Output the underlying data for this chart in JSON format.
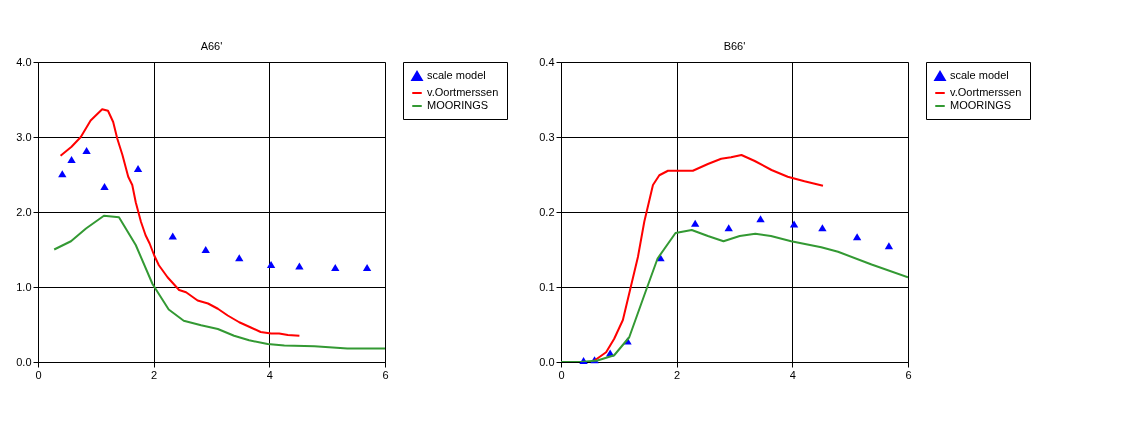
{
  "chart_data": [
    {
      "type": "line",
      "title": "A66'",
      "xlim": [
        0,
        6
      ],
      "xticks": [
        0,
        2,
        4,
        6
      ],
      "ylim": [
        0,
        4
      ],
      "yticks": [
        {
          "value": 0,
          "label": "0.0"
        },
        {
          "value": 1,
          "label": "1.0"
        },
        {
          "value": 2,
          "label": "2.0"
        },
        {
          "value": 3,
          "label": "3.0"
        },
        {
          "value": 4,
          "label": "4.0"
        }
      ],
      "grid": true,
      "legend": "right",
      "series": [
        {
          "name": "scale model",
          "type": "scatter",
          "marker": "triangle",
          "color": "#0000ff",
          "x": [
            0.42,
            0.58,
            0.84,
            1.15,
            1.73,
            2.33,
            2.9,
            3.48,
            4.03,
            4.52,
            5.14,
            5.69
          ],
          "values": [
            2.51,
            2.7,
            2.82,
            2.34,
            2.58,
            1.68,
            1.5,
            1.39,
            1.3,
            1.28,
            1.26,
            1.26
          ]
        },
        {
          "name": "v.Oortmerssen",
          "marker": "none",
          "color": "#ff0000",
          "x": [
            0.39,
            0.58,
            0.74,
            0.91,
            1.11,
            1.21,
            1.3,
            1.37,
            1.46,
            1.56,
            1.63,
            1.69,
            1.78,
            1.86,
            1.93,
            2.01,
            2.09,
            2.24,
            2.44,
            2.56,
            2.76,
            2.94,
            3.11,
            3.28,
            3.48,
            3.68,
            3.85,
            4.03,
            4.17,
            4.32,
            4.52
          ],
          "values": [
            2.75,
            2.87,
            3.0,
            3.22,
            3.37,
            3.35,
            3.2,
            2.98,
            2.76,
            2.47,
            2.36,
            2.13,
            1.87,
            1.69,
            1.58,
            1.42,
            1.29,
            1.13,
            0.96,
            0.93,
            0.82,
            0.78,
            0.71,
            0.62,
            0.53,
            0.46,
            0.4,
            0.38,
            0.38,
            0.36,
            0.35
          ]
        },
        {
          "name": "MOORINGS",
          "marker": "none",
          "color": "#339933",
          "x": [
            0.28,
            0.57,
            0.83,
            1.14,
            1.4,
            1.69,
            1.98,
            2.26,
            2.52,
            2.82,
            3.11,
            3.39,
            3.65,
            3.97,
            4.26,
            4.78,
            5.35,
            6.0
          ],
          "values": [
            1.5,
            1.61,
            1.78,
            1.95,
            1.93,
            1.56,
            1.04,
            0.7,
            0.55,
            0.49,
            0.44,
            0.35,
            0.29,
            0.24,
            0.22,
            0.21,
            0.18,
            0.18
          ]
        }
      ]
    },
    {
      "type": "line",
      "title": "B66'",
      "xlim": [
        0,
        6
      ],
      "xticks": [
        0,
        2,
        4,
        6
      ],
      "ylim": [
        0,
        0.4
      ],
      "yticks": [
        {
          "value": 0,
          "label": "0.0"
        },
        0.1,
        0.2,
        0.3,
        0.4
      ],
      "grid": true,
      "legend": "right",
      "series": [
        {
          "name": "scale model",
          "type": "scatter",
          "marker": "triangle",
          "color": "#0000ff",
          "x": [
            0.39,
            0.58,
            0.85,
            1.15,
            1.72,
            2.32,
            2.9,
            3.45,
            4.03,
            4.52,
            5.12,
            5.67
          ],
          "values": [
            0.002,
            0.003,
            0.012,
            0.028,
            0.139,
            0.185,
            0.179,
            0.191,
            0.184,
            0.179,
            0.167,
            0.155
          ]
        },
        {
          "name": "v.Oortmerssen",
          "marker": "none",
          "color": "#ff0000",
          "x": [
            0.58,
            0.78,
            0.92,
            1.07,
            1.2,
            1.33,
            1.44,
            1.59,
            1.7,
            1.85,
            2.28,
            2.54,
            2.77,
            2.94,
            3.12,
            3.35,
            3.64,
            3.92,
            4.21,
            4.53
          ],
          "values": [
            0.002,
            0.013,
            0.031,
            0.056,
            0.098,
            0.14,
            0.187,
            0.236,
            0.249,
            0.255,
            0.255,
            0.264,
            0.271,
            0.273,
            0.276,
            0.268,
            0.256,
            0.247,
            0.241,
            0.235
          ]
        },
        {
          "name": "MOORINGS",
          "marker": "none",
          "color": "#339933",
          "x": [
            0,
            0.35,
            0.63,
            0.92,
            1.18,
            1.44,
            1.67,
            1.98,
            2.26,
            2.54,
            2.81,
            3.09,
            3.36,
            3.63,
            3.98,
            4.5,
            4.79,
            5.37,
            6.0
          ],
          "values": [
            0,
            0,
            0.002,
            0.009,
            0.033,
            0.089,
            0.138,
            0.172,
            0.176,
            0.168,
            0.161,
            0.168,
            0.171,
            0.168,
            0.161,
            0.153,
            0.147,
            0.13,
            0.113
          ]
        }
      ]
    }
  ]
}
